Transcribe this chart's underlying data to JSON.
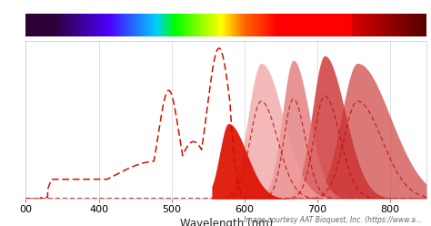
{
  "xmin": 300,
  "xmax": 850,
  "ymin": 0,
  "ymax": 1.05,
  "xlabel": "Wavelength (nm)",
  "bg_color": "#ffffff",
  "grid_color": "#e0e0e0",
  "caption": "Image courtesy AAT Bioquest, Inc. (https://www.a...",
  "pe_exc_color": "#cc1100",
  "pe_em_color": "#dd2200",
  "emissions": [
    {
      "peak": 623,
      "sigma_l": 18,
      "sigma_r": 30,
      "amp": 0.9,
      "fill_color": "#f0a0a0",
      "fill_alpha": 0.75
    },
    {
      "peak": 667,
      "sigma_l": 15,
      "sigma_r": 22,
      "amp": 0.92,
      "fill_color": "#e07070",
      "fill_alpha": 0.75
    },
    {
      "peak": 710,
      "sigma_l": 17,
      "sigma_r": 28,
      "amp": 0.95,
      "fill_color": "#cc3030",
      "fill_alpha": 0.8
    },
    {
      "peak": 755,
      "sigma_l": 22,
      "sigma_r": 45,
      "amp": 0.9,
      "fill_color": "#c83030",
      "fill_alpha": 0.65
    }
  ]
}
